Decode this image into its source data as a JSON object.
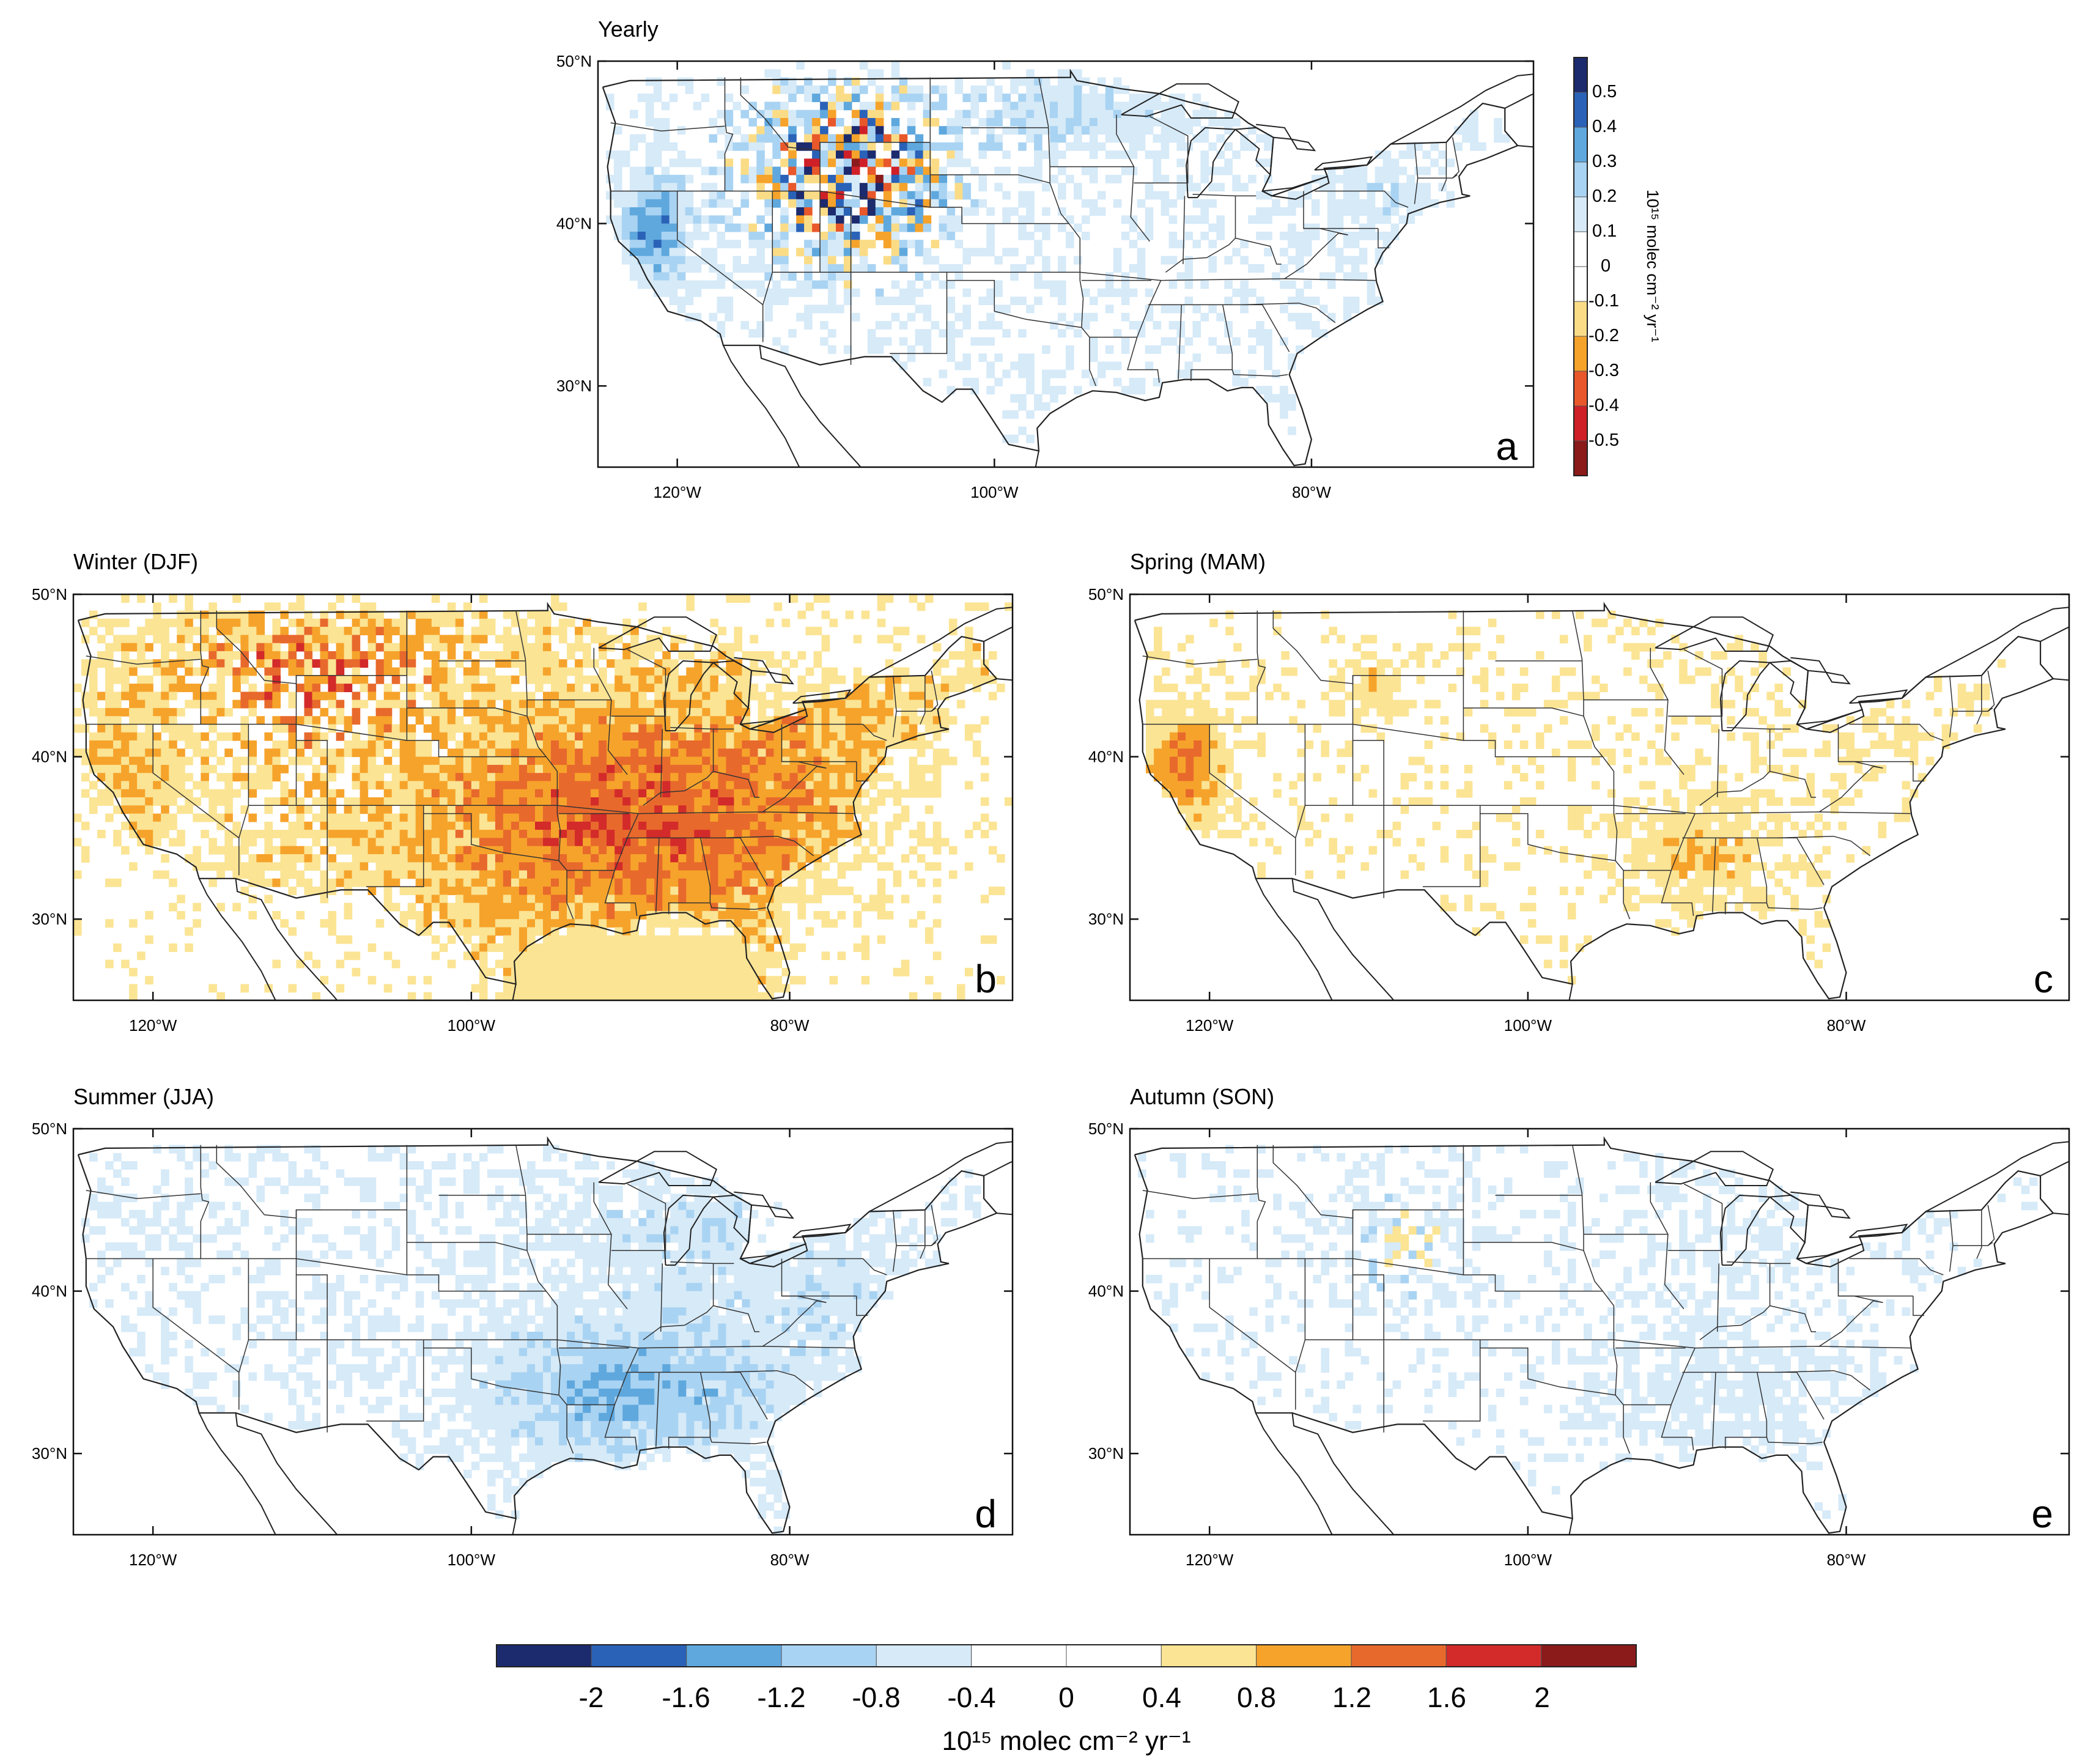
{
  "figure": {
    "panels": [
      {
        "id": "a",
        "title": "Yearly",
        "letter": "a",
        "season": "yearly"
      },
      {
        "id": "b",
        "title": "Winter (DJF)",
        "letter": "b",
        "season": "winter"
      },
      {
        "id": "c",
        "title": "Spring (MAM)",
        "letter": "c",
        "season": "spring"
      },
      {
        "id": "d",
        "title": "Summer (JJA)",
        "letter": "d",
        "season": "summer"
      },
      {
        "id": "e",
        "title": "Autumn (SON)",
        "letter": "e",
        "season": "autumn"
      }
    ],
    "map_extent": {
      "lon_min": -125,
      "lon_max": -66,
      "lat_min": 25,
      "lat_max": 50
    },
    "lat_ticks": [
      {
        "value": 50,
        "label": "50°N"
      },
      {
        "value": 40,
        "label": "40°N"
      },
      {
        "value": 30,
        "label": "30°N"
      }
    ],
    "lon_ticks": [
      {
        "value": -120,
        "label": "120°W"
      },
      {
        "value": -100,
        "label": "100°W"
      },
      {
        "value": -80,
        "label": "80°W"
      }
    ],
    "yearly_colorbar": {
      "labels": [
        "0.5",
        "0.4",
        "0.3",
        "0.2",
        "0.1",
        "0",
        "-0.1",
        "-0.2",
        "-0.3",
        "-0.4",
        "-0.5"
      ],
      "colors": [
        "#8b1a1a",
        "#cf2027",
        "#e8582a",
        "#f6a32b",
        "#fbdc86",
        "#ffffff",
        "#ffffff",
        "#d6eaf8",
        "#a9d3f2",
        "#5fa8de",
        "#2a62b8",
        "#1c2a6e"
      ],
      "unit": "10¹⁵ molec cm⁻² yr⁻¹"
    },
    "seasonal_colorbar": {
      "labels": [
        "-2",
        "-1.6",
        "-1.2",
        "-0.8",
        "-0.4",
        "0",
        "0.4",
        "0.8",
        "1.2",
        "1.6",
        "2"
      ],
      "colors": [
        "#1c2a6e",
        "#2a62b8",
        "#5fa8de",
        "#a9d3f2",
        "#d6eaf8",
        "#ffffff",
        "#ffffff",
        "#fbe494",
        "#f6a32b",
        "#e8692c",
        "#d32a2a",
        "#8b1a1a"
      ],
      "unit": "10¹⁵ molec cm⁻² yr⁻¹"
    }
  }
}
